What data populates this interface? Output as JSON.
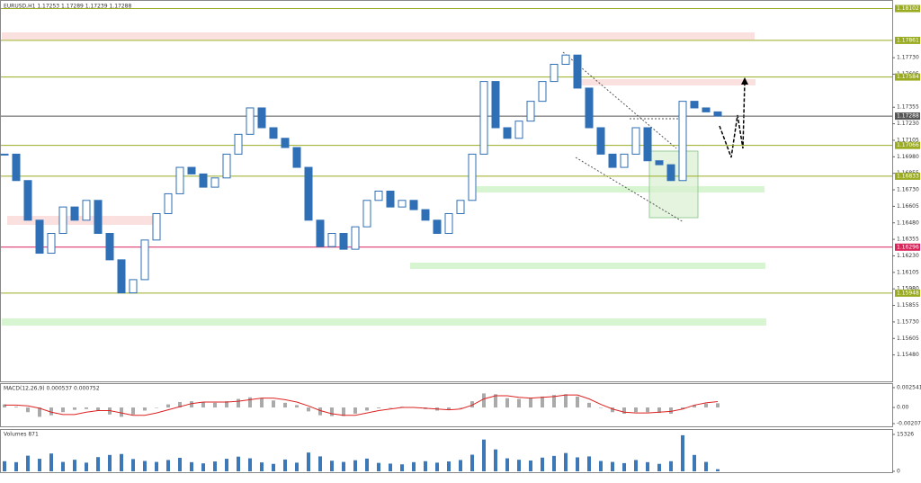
{
  "chart_data": {
    "type": "candlestick",
    "title": "EURUSD,H1  1.17253 1.17289 1.17239 1.17288",
    "color": "#2f6fb5",
    "values": [
      1.17,
      1.168,
      1.165,
      1.1625,
      1.164,
      1.166,
      1.165,
      1.1665,
      1.164,
      1.162,
      1.1595,
      1.1605,
      1.1635,
      1.1655,
      1.167,
      1.169,
      1.1685,
      1.1675,
      1.1682,
      1.17,
      1.1715,
      1.1735,
      1.172,
      1.1712,
      1.1705,
      1.169,
      1.165,
      1.163,
      1.164,
      1.1628,
      1.1645,
      1.1665,
      1.1672,
      1.166,
      1.1665,
      1.1658,
      1.165,
      1.164,
      1.1655,
      1.1665,
      1.17,
      1.1755,
      1.172,
      1.1712,
      1.1725,
      1.174,
      1.1755,
      1.1768,
      1.1775,
      1.175,
      1.172,
      1.17,
      1.169,
      1.17,
      1.172,
      1.1695,
      1.1692,
      1.168,
      1.174,
      1.1735,
      1.1732,
      1.17288
    ],
    "ylim": [
      1.1528,
      1.1816
    ],
    "yticks": [
      {
        "value": 1.1773,
        "label": "1.17730"
      },
      {
        "value": 1.17605,
        "label": "1.17605"
      },
      {
        "value": 1.17355,
        "label": "1.17355"
      },
      {
        "value": 1.1723,
        "label": "1.17230"
      },
      {
        "value": 1.17105,
        "label": "1.17105"
      },
      {
        "value": 1.1698,
        "label": "1.16980"
      },
      {
        "value": 1.16855,
        "label": "1.16855"
      },
      {
        "value": 1.1673,
        "label": "1.16730"
      },
      {
        "value": 1.16605,
        "label": "1.16605"
      },
      {
        "value": 1.1648,
        "label": "1.16480"
      },
      {
        "value": 1.16355,
        "label": "1.16355"
      },
      {
        "value": 1.1623,
        "label": "1.16230"
      },
      {
        "value": 1.16105,
        "label": "1.16105"
      },
      {
        "value": 1.1598,
        "label": "1.15980"
      },
      {
        "value": 1.15855,
        "label": "1.15855"
      },
      {
        "value": 1.1573,
        "label": "1.15730"
      },
      {
        "value": 1.15605,
        "label": "1.15605"
      },
      {
        "value": 1.1548,
        "label": "1.15480"
      }
    ],
    "levels": [
      {
        "value": 1.18102,
        "color": "#9aab22"
      },
      {
        "value": 1.17861,
        "color": "#9aab22"
      },
      {
        "value": 1.17584,
        "color": "#9aab22"
      },
      {
        "value": 1.17288,
        "color": "#555555"
      },
      {
        "value": 1.17066,
        "color": "#9aab22"
      },
      {
        "value": 1.16833,
        "color": "#9aab22"
      },
      {
        "value": 1.16296,
        "color": "#d9245a"
      },
      {
        "value": 1.15948,
        "color": "#9aab22"
      }
    ],
    "macd": {
      "label": "MACD(12,26,9) 0.000537 0.000752",
      "ylim": [
        -0.002072,
        0.002541
      ],
      "yticks": [
        0.002541,
        {
          "value": 0,
          "label": "0.00"
        },
        -0.002072
      ],
      "histogram": [
        0.0004,
        0.0001,
        -0.0006,
        -0.0012,
        -0.001,
        -0.0006,
        -0.0003,
        -0.0002,
        -0.0004,
        -0.0009,
        -0.0012,
        -0.0009,
        -0.0004,
        0.0,
        0.0004,
        0.0007,
        0.0008,
        0.0007,
        0.0006,
        0.0008,
        0.0011,
        0.0013,
        0.0012,
        0.0009,
        0.0006,
        0.0003,
        -0.0005,
        -0.001,
        -0.0011,
        -0.0011,
        -0.0008,
        -0.0004,
        -0.0001,
        0.0,
        0.0001,
        0.0,
        -0.0002,
        -0.0004,
        -0.0003,
        0.0,
        0.0008,
        0.0018,
        0.0017,
        0.0012,
        0.0011,
        0.0012,
        0.0014,
        0.0016,
        0.0017,
        0.0014,
        0.0006,
        0.0,
        -0.0006,
        -0.0008,
        -0.0006,
        -0.0006,
        -0.0007,
        -0.0008,
        -0.0002,
        0.0003,
        0.0005,
        0.000537
      ],
      "signal": [
        0.0003,
        0.0003,
        0.0002,
        -0.0001,
        -0.0006,
        -0.0009,
        -0.0009,
        -0.0006,
        -0.0004,
        -0.0004,
        -0.0007,
        -0.001,
        -0.001,
        -0.0007,
        -0.0003,
        0.0001,
        0.0005,
        0.0007,
        0.0007,
        0.0007,
        0.0008,
        0.001,
        0.0012,
        0.0012,
        0.001,
        0.0007,
        0.0002,
        -0.0004,
        -0.0008,
        -0.001,
        -0.001,
        -0.0007,
        -0.0004,
        -0.0002,
        0.0,
        0.0,
        -0.0001,
        -0.0002,
        -0.0003,
        -0.0002,
        0.0003,
        0.0011,
        0.0015,
        0.0015,
        0.0013,
        0.0012,
        0.0013,
        0.0014,
        0.0016,
        0.0016,
        0.0011,
        0.0004,
        -0.0002,
        -0.0006,
        -0.0007,
        -0.0007,
        -0.0006,
        -0.0005,
        -0.0002,
        0.0003,
        0.0006,
        0.000752
      ]
    },
    "volumes": {
      "label": "Volumes 871",
      "ylim": [
        0,
        15326
      ],
      "yticks": [
        15326,
        0
      ],
      "values": [
        4200,
        3800,
        6500,
        5200,
        7400,
        3900,
        4800,
        3600,
        5900,
        6800,
        7200,
        5100,
        4300,
        3900,
        4700,
        5600,
        3800,
        3300,
        4100,
        5200,
        6100,
        5400,
        3700,
        3100,
        4900,
        3600,
        7800,
        6200,
        4400,
        3900,
        4600,
        5300,
        3500,
        3200,
        2900,
        3800,
        4200,
        3600,
        4100,
        4700,
        6900,
        13200,
        9100,
        5400,
        4800,
        4500,
        5700,
        6400,
        7600,
        5800,
        6200,
        4300,
        3900,
        3400,
        4700,
        3800,
        3100,
        4200,
        15000,
        6800,
        3900,
        871
      ]
    }
  }
}
